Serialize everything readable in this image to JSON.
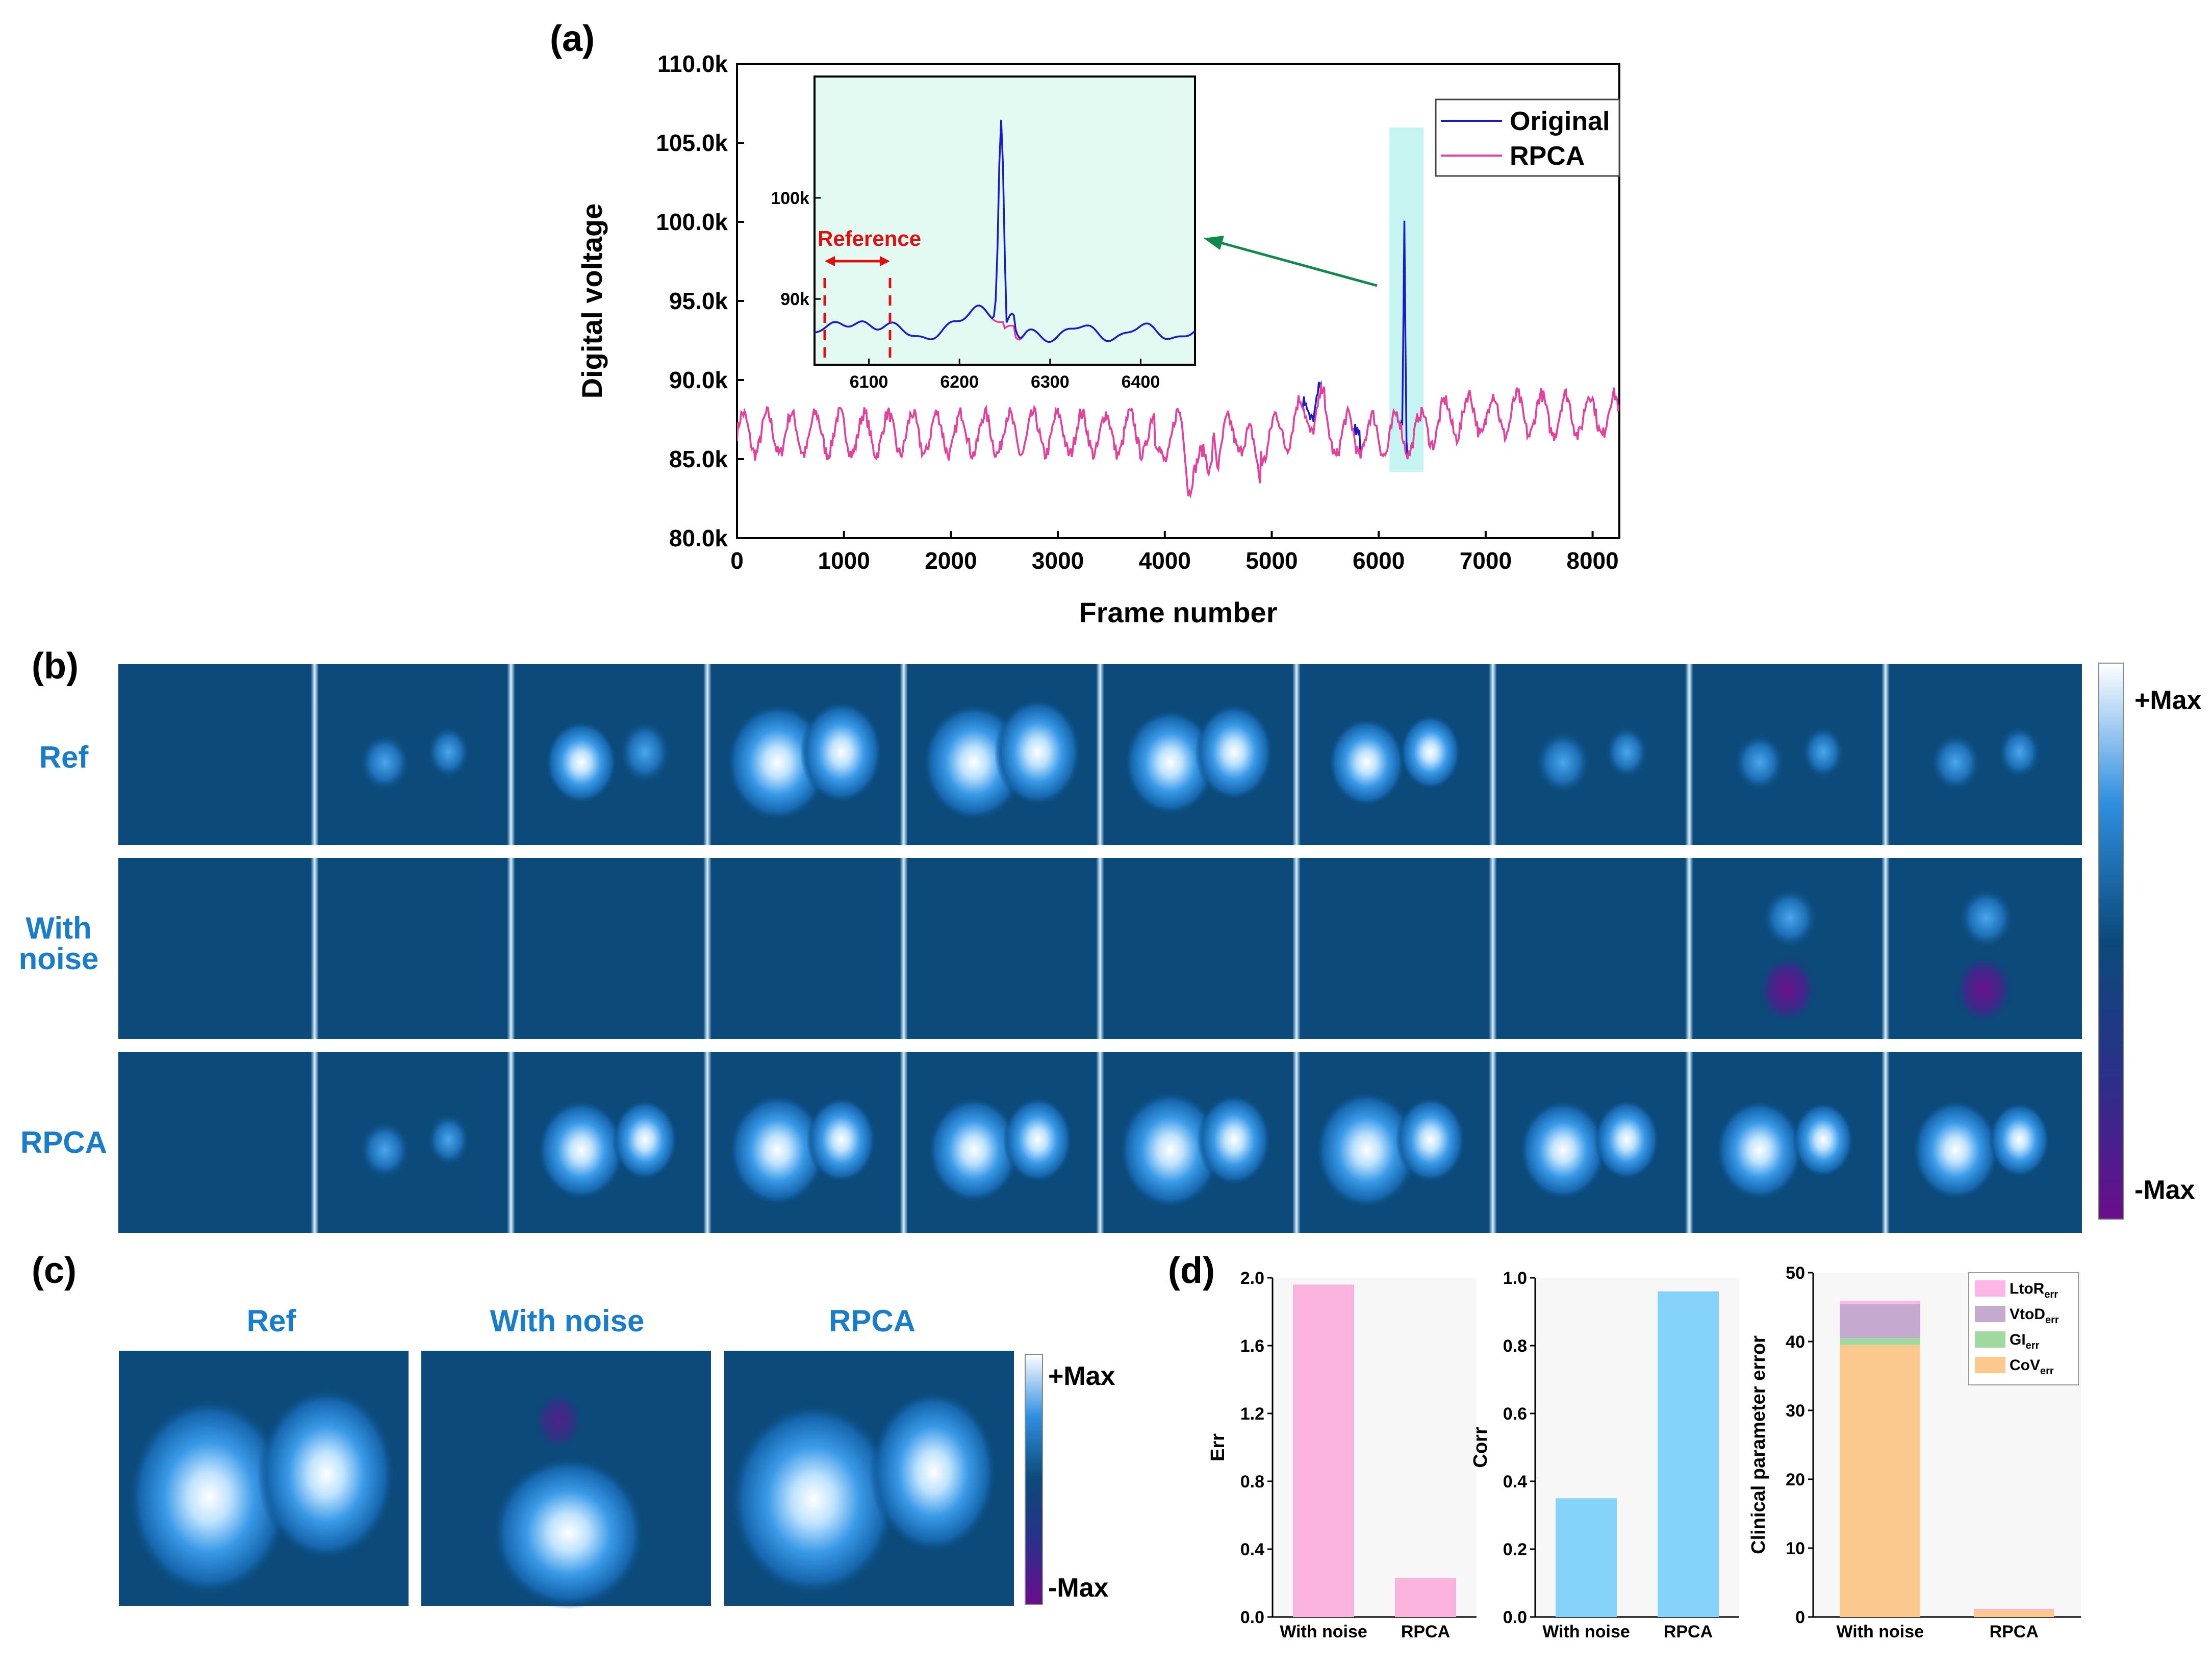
{
  "figure": {
    "panel_labels": [
      "(a)",
      "(b)",
      "(c)",
      "(d)"
    ]
  },
  "chart_data": [
    {
      "id": "a",
      "type": "line",
      "xlabel": "Frame number",
      "ylabel": "Digital voltage",
      "xlim": [
        0,
        8250
      ],
      "ylim": [
        80000,
        110000
      ],
      "xticks": [
        0,
        1000,
        2000,
        3000,
        4000,
        5000,
        6000,
        7000,
        8000
      ],
      "xtick_labels": [
        "0",
        "1000",
        "2000",
        "3000",
        "4000",
        "5000",
        "6000",
        "7000",
        "8000"
      ],
      "yticks": [
        80000,
        85000,
        90000,
        95000,
        100000,
        105000,
        110000
      ],
      "ytick_labels": [
        "80.0k",
        "85.0k",
        "90.0k",
        "95.0k",
        "100.0k",
        "105.0k",
        "110.0k"
      ],
      "legend": [
        "Original",
        "RPCA"
      ],
      "series_colors": [
        "#1a1acc",
        "#e8409a"
      ],
      "highlight_range": [
        6100,
        6420
      ],
      "series_description": [
        {
          "name": "Original",
          "x_range": [
            0,
            8250
          ],
          "baseline": 86500,
          "spike": {
            "x": 6240,
            "y": 101500
          }
        },
        {
          "name": "RPCA",
          "x_range": [
            0,
            8250
          ],
          "baseline": 86500
        }
      ],
      "inset": {
        "xlim": [
          6040,
          6460
        ],
        "ylim": [
          83500,
          112000
        ],
        "xticks": [
          6100,
          6200,
          6300,
          6400
        ],
        "xtick_labels": [
          "6100",
          "6200",
          "6300",
          "6400"
        ],
        "yticks": [
          90000,
          100000
        ],
        "ytick_labels": [
          "90k",
          "100k"
        ],
        "annotation": "Reference",
        "reference_range": [
          6050,
          6120
        ]
      }
    },
    {
      "id": "d1",
      "type": "bar",
      "categories": [
        "With noise",
        "RPCA"
      ],
      "values": [
        1.96,
        0.23
      ],
      "ylabel": "Err",
      "ylim": [
        0,
        2.0
      ],
      "yticks": [
        0.0,
        0.4,
        0.8,
        1.2,
        1.6,
        2.0
      ],
      "ytick_labels": [
        "0.0",
        "0.4",
        "0.8",
        "1.2",
        "1.6",
        "2.0"
      ],
      "color": "#f9b3dc"
    },
    {
      "id": "d2",
      "type": "bar",
      "categories": [
        "With noise",
        "RPCA"
      ],
      "values": [
        0.35,
        0.96
      ],
      "ylabel": "Corr",
      "ylim": [
        0,
        1.0
      ],
      "yticks": [
        0.0,
        0.2,
        0.4,
        0.6,
        0.8,
        1.0
      ],
      "ytick_labels": [
        "0.0",
        "0.2",
        "0.4",
        "0.6",
        "0.8",
        "1.0"
      ],
      "color": "#85d3fa"
    },
    {
      "id": "d3",
      "type": "bar",
      "stacked": true,
      "categories": [
        "With noise",
        "RPCA"
      ],
      "ylabel": "Clinical parameter error",
      "ylim": [
        0,
        50
      ],
      "yticks": [
        0,
        10,
        20,
        30,
        40,
        50
      ],
      "ytick_labels": [
        "0",
        "10",
        "20",
        "30",
        "40",
        "50"
      ],
      "series": [
        {
          "name": "CoV",
          "sub": "err",
          "values": [
            39.5,
            1.0
          ],
          "color": "#fbc98d"
        },
        {
          "name": "GI",
          "sub": "err",
          "values": [
            1.0,
            0.0
          ],
          "color": "#9fd9a0"
        },
        {
          "name": "VtoD",
          "sub": "err",
          "values": [
            5.0,
            0.0
          ],
          "color": "#c5a9cf"
        },
        {
          "name": "LtoR",
          "sub": "err",
          "values": [
            0.4,
            0.2
          ],
          "color": "#fdb6e8"
        }
      ]
    }
  ],
  "panel_b": {
    "rows": [
      "Ref",
      "With\nnoise",
      "RPCA"
    ],
    "row_label_lines": [
      [
        "Ref"
      ],
      [
        "With",
        "noise"
      ],
      [
        "RPCA"
      ]
    ],
    "colorbar": {
      "max_label": "+Max",
      "min_label": "-Max"
    },
    "frames_per_row": 10
  },
  "panel_c": {
    "titles": [
      "Ref",
      "With noise",
      "RPCA"
    ],
    "colorbar": {
      "max_label": "+Max",
      "min_label": "-Max"
    }
  },
  "colors": {
    "background_blue": "#0b4a7a",
    "accent_blue": "#1a7dcc"
  }
}
